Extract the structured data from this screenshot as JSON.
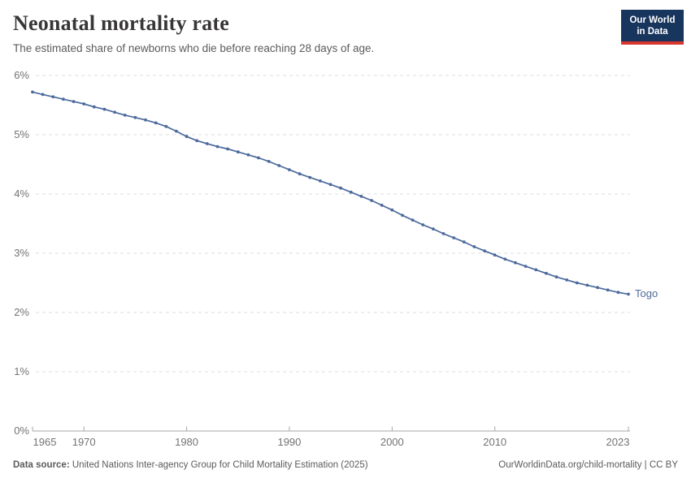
{
  "header": {
    "title": "Neonatal mortality rate",
    "subtitle": "The estimated share of newborns who die before reaching 28 days of age."
  },
  "logo": {
    "line1": "Our World",
    "line2": "in Data",
    "bg_color": "#18355e",
    "accent_color": "#d8372f"
  },
  "chart_data": {
    "type": "line",
    "title": "Neonatal mortality rate",
    "xlabel": "",
    "ylabel": "",
    "xlim": [
      1965,
      2023
    ],
    "ylim": [
      0,
      6
    ],
    "grid": "horizontal-dashed",
    "legend_position": "end-of-line",
    "x_ticks": [
      {
        "value": 1965,
        "label": "1965"
      },
      {
        "value": 1970,
        "label": "1970"
      },
      {
        "value": 1980,
        "label": "1980"
      },
      {
        "value": 1990,
        "label": "1990"
      },
      {
        "value": 2000,
        "label": "2000"
      },
      {
        "value": 2010,
        "label": "2010"
      },
      {
        "value": 2023,
        "label": "2023"
      }
    ],
    "y_ticks": [
      {
        "value": 0,
        "label": "0%"
      },
      {
        "value": 1,
        "label": "1%"
      },
      {
        "value": 2,
        "label": "2%"
      },
      {
        "value": 3,
        "label": "3%"
      },
      {
        "value": 4,
        "label": "4%"
      },
      {
        "value": 5,
        "label": "5%"
      },
      {
        "value": 6,
        "label": "6%"
      }
    ],
    "x": [
      1965,
      1966,
      1967,
      1968,
      1969,
      1970,
      1971,
      1972,
      1973,
      1974,
      1975,
      1976,
      1977,
      1978,
      1979,
      1980,
      1981,
      1982,
      1983,
      1984,
      1985,
      1986,
      1987,
      1988,
      1989,
      1990,
      1991,
      1992,
      1993,
      1994,
      1995,
      1996,
      1997,
      1998,
      1999,
      2000,
      2001,
      2002,
      2003,
      2004,
      2005,
      2006,
      2007,
      2008,
      2009,
      2010,
      2011,
      2012,
      2013,
      2014,
      2015,
      2016,
      2017,
      2018,
      2019,
      2020,
      2021,
      2022,
      2023
    ],
    "series": [
      {
        "name": "Togo",
        "color": "#4c6a9c",
        "unit": "%",
        "values": [
          5.72,
          5.68,
          5.64,
          5.6,
          5.56,
          5.52,
          5.47,
          5.43,
          5.38,
          5.33,
          5.29,
          5.25,
          5.2,
          5.14,
          5.06,
          4.97,
          4.9,
          4.85,
          4.8,
          4.76,
          4.71,
          4.66,
          4.61,
          4.55,
          4.48,
          4.41,
          4.34,
          4.28,
          4.22,
          4.16,
          4.1,
          4.03,
          3.96,
          3.89,
          3.81,
          3.73,
          3.64,
          3.56,
          3.48,
          3.41,
          3.33,
          3.26,
          3.19,
          3.11,
          3.04,
          2.97,
          2.9,
          2.84,
          2.78,
          2.72,
          2.66,
          2.6,
          2.55,
          2.5,
          2.46,
          2.42,
          2.38,
          2.34,
          2.31
        ]
      }
    ]
  },
  "footer": {
    "source_label": "Data source:",
    "source_text": " United Nations Inter-agency Group for Child Mortality Estimation (2025)",
    "link_text": "OurWorldinData.org/child-mortality | CC BY"
  }
}
